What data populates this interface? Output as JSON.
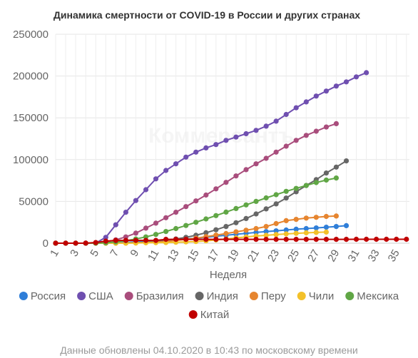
{
  "chart_data": {
    "type": "line",
    "title": "Динамика смертности от COVID-19 в России и других странах",
    "xlabel": "Неделя",
    "ylabel": "",
    "xlim": [
      1,
      36
    ],
    "ylim": [
      0,
      250000
    ],
    "y_ticks": [
      "0",
      "50000",
      "100000",
      "150000",
      "200000",
      "250000"
    ],
    "x_ticks": [
      "1",
      "3",
      "5",
      "7",
      "9",
      "11",
      "13",
      "15",
      "17",
      "19",
      "21",
      "23",
      "25",
      "27",
      "29",
      "31",
      "33",
      "35"
    ],
    "grid": true,
    "legend_position": "bottom",
    "series": [
      {
        "name": "Россия",
        "color": "#2f7ed8",
        "x_start": 1,
        "values": [
          0,
          0,
          0,
          0,
          0,
          100,
          400,
          900,
          1500,
          2000,
          2600,
          3300,
          4100,
          5000,
          6000,
          7100,
          8300,
          9500,
          10700,
          11800,
          12900,
          13900,
          14800,
          15800,
          16700,
          17500,
          18300,
          19100,
          20000,
          21000
        ]
      },
      {
        "name": "США",
        "color": "#6f4fb0",
        "x_start": 1,
        "values": [
          0,
          0,
          0,
          0,
          100,
          7000,
          22000,
          37000,
          51000,
          64000,
          77000,
          87000,
          95000,
          103000,
          109000,
          114000,
          118000,
          123000,
          127000,
          131000,
          135000,
          140000,
          146000,
          154000,
          162000,
          169000,
          176000,
          182000,
          188000,
          193000,
          199000,
          204000
        ]
      },
      {
        "name": "Бразилия",
        "color": "#a94d7c",
        "x_start": 1,
        "values": [
          0,
          0,
          0,
          0,
          0,
          1500,
          4000,
          7500,
          12000,
          18000,
          24000,
          30500,
          37000,
          43800,
          50600,
          57600,
          65000,
          72800,
          80500,
          88000,
          95000,
          101500,
          109000,
          116000,
          123000,
          129000,
          134000,
          139000,
          143000
        ]
      },
      {
        "name": "Индия",
        "color": "#666666",
        "x_start": 1,
        "values": [
          0,
          0,
          0,
          0,
          0,
          0,
          0,
          300,
          700,
          1300,
          2200,
          3500,
          5000,
          7000,
          9500,
          12500,
          16000,
          20000,
          24500,
          29500,
          35000,
          41000,
          47000,
          54000,
          61500,
          69000,
          76000,
          84000,
          91000,
          98500
        ]
      },
      {
        "name": "Перу",
        "color": "#e6852f",
        "x_start": 1,
        "values": [
          0,
          0,
          0,
          0,
          0,
          0,
          0,
          100,
          300,
          700,
          1300,
          2000,
          3200,
          4500,
          6000,
          7800,
          9600,
          11500,
          13600,
          15500,
          17500,
          20000,
          23500,
          27000,
          28500,
          30000,
          31000,
          32000,
          32500
        ]
      },
      {
        "name": "Чили",
        "color": "#f3c12a",
        "x_start": 1,
        "values": [
          0,
          0,
          0,
          0,
          0,
          0,
          0,
          100,
          200,
          400,
          600,
          800,
          1100,
          1500,
          2000,
          2800,
          3800,
          5000,
          6300,
          7500,
          8600,
          9400,
          10300,
          11100,
          11800,
          12400,
          12900,
          13300
        ]
      },
      {
        "name": "Мексика",
        "color": "#60a645",
        "x_start": 1,
        "values": [
          0,
          0,
          0,
          0,
          0,
          500,
          1500,
          3000,
          5000,
          7500,
          10500,
          14000,
          17500,
          21200,
          25000,
          29000,
          33000,
          37200,
          41500,
          45800,
          50000,
          54200,
          58000,
          62000,
          65500,
          69000,
          72500,
          75500,
          78000
        ]
      },
      {
        "name": "Китай",
        "color": "#c00000",
        "x_start": 1,
        "values": [
          0,
          0,
          0,
          100,
          800,
          2500,
          3300,
          3300,
          3300,
          3300,
          3300,
          4600,
          4600,
          4600,
          4600,
          4600,
          4600,
          4600,
          4600,
          4600,
          4600,
          4600,
          4600,
          4600,
          4600,
          4600,
          4600,
          4600,
          4600,
          4600,
          4700,
          4700,
          4700,
          4700,
          4700,
          4700
        ]
      }
    ],
    "watermark": "Коммерсантъ"
  },
  "footer": {
    "text": "Данные обновлены 04.10.2020 в 10:43 по московскому времени"
  }
}
